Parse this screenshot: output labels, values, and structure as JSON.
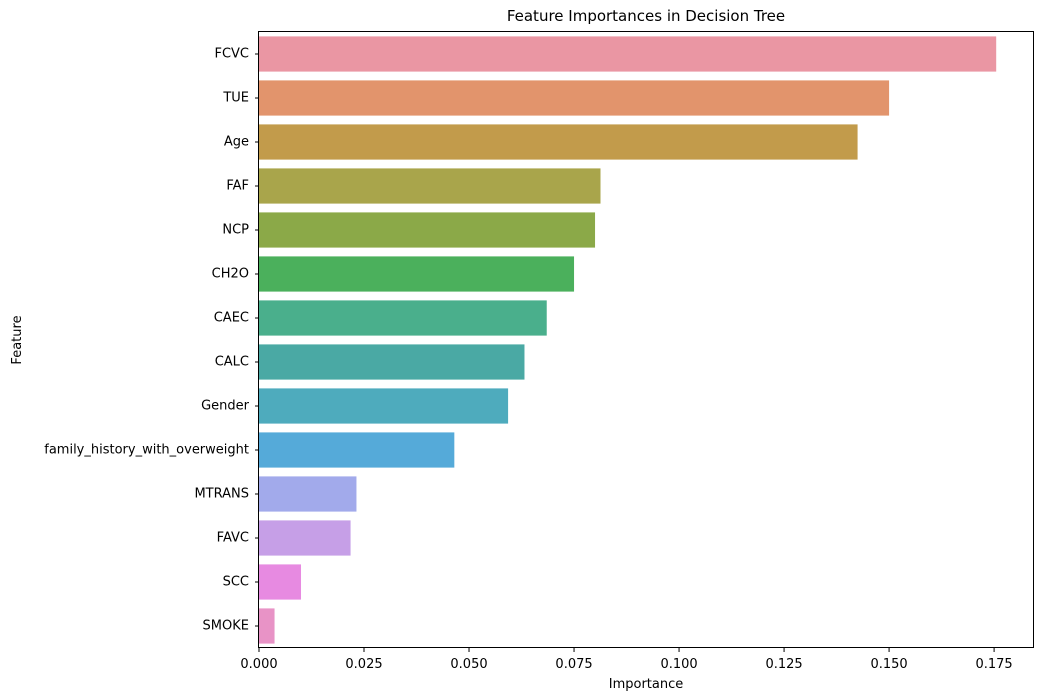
{
  "chart_data": {
    "type": "bar",
    "orientation": "horizontal",
    "title": "Feature Importances in Decision Tree",
    "xlabel": "Importance",
    "ylabel": "Feature",
    "xlim": [
      0,
      0.1845
    ],
    "xticks": [
      "0.000",
      "0.025",
      "0.050",
      "0.075",
      "0.100",
      "0.125",
      "0.150",
      "0.175"
    ],
    "grid": false,
    "legend": "none",
    "categories": [
      "FCVC",
      "TUE",
      "Age",
      "FAF",
      "NCP",
      "CH2O",
      "CAEC",
      "CALC",
      "Gender",
      "family_history_with_overweight",
      "MTRANS",
      "FAVC",
      "SCC",
      "SMOKE"
    ],
    "values": [
      0.1755,
      0.15,
      0.1425,
      0.0813,
      0.08,
      0.075,
      0.0685,
      0.0632,
      0.0593,
      0.0465,
      0.0232,
      0.0218,
      0.01,
      0.0037
    ],
    "colors": [
      "#ea96a3",
      "#e2946c",
      "#c29b4b",
      "#a9a54b",
      "#8ba948",
      "#4bb05c",
      "#4aaf8c",
      "#4aa9a4",
      "#4eabbd",
      "#55aad9",
      "#a2aaeb",
      "#c69fe7",
      "#e78ae1",
      "#e893c6"
    ]
  }
}
